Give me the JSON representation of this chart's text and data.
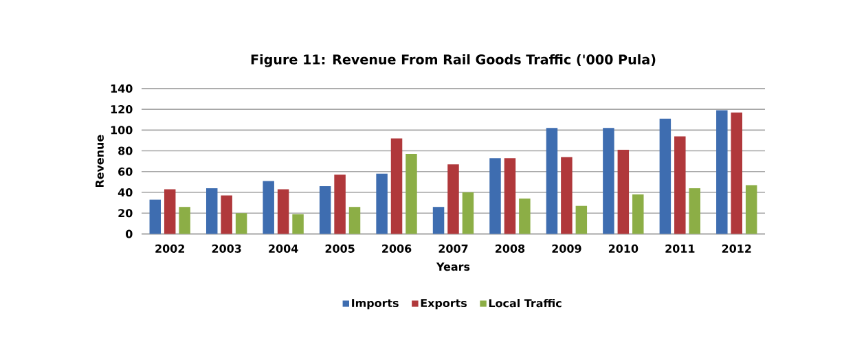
{
  "chart_data": {
    "type": "bar",
    "title": "Figure 11: Revenue From Rail Goods Traffic ('000 Pula)",
    "xlabel": "Years",
    "ylabel": "Revenue",
    "categories": [
      "2002",
      "2003",
      "2004",
      "2005",
      "2006",
      "2007",
      "2008",
      "2009",
      "2010",
      "2011",
      "2012"
    ],
    "series": [
      {
        "name": "Imports",
        "color": "#3e6db0",
        "values": [
          33,
          44,
          51,
          46,
          58,
          26,
          73,
          102,
          102,
          111,
          119
        ]
      },
      {
        "name": "Exports",
        "color": "#b0383b",
        "values": [
          43,
          37,
          43,
          57,
          92,
          67,
          73,
          74,
          81,
          94,
          117
        ]
      },
      {
        "name": "Local  Traffic",
        "color": "#8cae46",
        "values": [
          26,
          20,
          19,
          26,
          77,
          40,
          34,
          27,
          38,
          44,
          47
        ]
      }
    ],
    "ylim": [
      0,
      140
    ],
    "yticks": [
      0,
      20,
      40,
      60,
      80,
      100,
      120,
      140
    ],
    "grid": "y",
    "legend": "bottom"
  }
}
